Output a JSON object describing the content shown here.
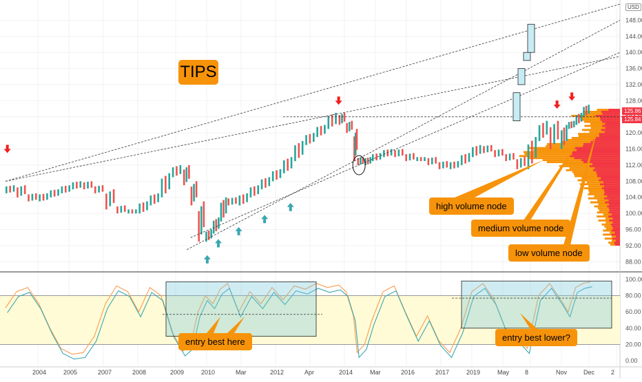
{
  "title": "TIPS",
  "currency": "USD",
  "price_tags": [
    {
      "label": "125.86",
      "color": "#f23645"
    },
    {
      "label": "125.84",
      "color": "#f23645"
    }
  ],
  "callouts": {
    "high_volume": "high volume node",
    "medium_volume": "medium volume node",
    "low_volume": "low volume node",
    "entry_best_here": "entry best here",
    "entry_best_lower": "entry best lower?"
  },
  "colors": {
    "up": "#26a69a",
    "down": "#ef5350",
    "orange": "#f7930a",
    "volume_red": "#f23645",
    "box_blue": "#c8ecf4",
    "band_yellow": "#fffbd6",
    "arrow_up": "#3aa7b0",
    "arrow_down": "#f21f1f"
  },
  "chart_data": [
    {
      "type": "line",
      "name": "price",
      "y_axis_ticks": [
        "148.00",
        "144.00",
        "140.00",
        "136.00",
        "132.00",
        "128.00",
        "124.00",
        "120.00",
        "116.00",
        "112.00",
        "108.00",
        "104.00",
        "100.00",
        "96.00",
        "92.00",
        "88.00"
      ],
      "x_axis_ticks": [
        "2004",
        "2005",
        "2007",
        "2008",
        "2009",
        "2010",
        "Mar",
        "2012",
        "Apr",
        "2014",
        "Mar",
        "2016",
        "2017",
        "2019",
        "May",
        "8",
        "Nov",
        "Dec",
        "2"
      ],
      "ylim": [
        86,
        152
      ],
      "series": [
        {
          "values": [
            [
              2004.0,
              105
            ],
            [
              2004.3,
              106
            ],
            [
              2004.6,
              104
            ],
            [
              2004.9,
              103
            ],
            [
              2005.2,
              104
            ],
            [
              2005.5,
              105
            ],
            [
              2005.8,
              106
            ],
            [
              2006.1,
              107
            ],
            [
              2006.4,
              106
            ],
            [
              2006.7,
              105
            ],
            [
              2007.0,
              101
            ],
            [
              2007.3,
              100
            ],
            [
              2007.6,
              100
            ],
            [
              2007.9,
              102
            ],
            [
              2008.2,
              104
            ],
            [
              2008.5,
              109
            ],
            [
              2008.8,
              111
            ],
            [
              2009.0,
              107
            ],
            [
              2009.2,
              102
            ],
            [
              2009.4,
              93
            ],
            [
              2009.6,
              95
            ],
            [
              2009.8,
              98
            ],
            [
              2010.0,
              103
            ],
            [
              2010.3,
              102
            ],
            [
              2010.6,
              104
            ],
            [
              2010.9,
              106
            ],
            [
              2011.2,
              108
            ],
            [
              2011.5,
              110
            ],
            [
              2011.8,
              113
            ],
            [
              2012.1,
              117
            ],
            [
              2012.4,
              119
            ],
            [
              2012.7,
              121
            ],
            [
              2013.0,
              124
            ],
            [
              2013.2,
              122
            ],
            [
              2013.4,
              120
            ],
            [
              2013.5,
              113
            ],
            [
              2013.7,
              112
            ],
            [
              2013.9,
              113
            ],
            [
              2014.2,
              114
            ],
            [
              2014.5,
              115
            ],
            [
              2014.8,
              114
            ],
            [
              2015.1,
              113
            ],
            [
              2015.4,
              113
            ],
            [
              2015.7,
              112
            ],
            [
              2016.0,
              111
            ],
            [
              2016.3,
              112
            ],
            [
              2016.6,
              114
            ],
            [
              2016.9,
              116
            ],
            [
              2017.2,
              115
            ],
            [
              2017.5,
              114
            ],
            [
              2017.8,
              113
            ],
            [
              2018.1,
              111
            ],
            [
              2018.4,
              118
            ],
            [
              2018.7,
              122
            ],
            [
              2019.0,
              116
            ],
            [
              2019.2,
              121
            ],
            [
              2019.4,
              122
            ],
            [
              2019.6,
              124
            ],
            [
              2019.8,
              126
            ]
          ]
        }
      ]
    },
    {
      "type": "line",
      "name": "stochastic",
      "y_axis_ticks": [
        "100.00",
        "80.00",
        "60.00",
        "40.00",
        "20.00",
        "0.00"
      ],
      "ylim": [
        -5,
        105
      ],
      "bands": [
        20,
        80
      ],
      "series": [
        {
          "values": [
            [
              2004.0,
              65
            ],
            [
              2004.3,
              85
            ],
            [
              2004.6,
              90
            ],
            [
              2004.9,
              70
            ],
            [
              2005.2,
              40
            ],
            [
              2005.5,
              15
            ],
            [
              2005.8,
              8
            ],
            [
              2006.1,
              10
            ],
            [
              2006.4,
              30
            ],
            [
              2006.7,
              70
            ],
            [
              2007.0,
              92
            ],
            [
              2007.3,
              85
            ],
            [
              2007.6,
              60
            ],
            [
              2007.9,
              90
            ],
            [
              2008.2,
              80
            ],
            [
              2008.5,
              35
            ],
            [
              2008.8,
              12
            ],
            [
              2009.0,
              20
            ],
            [
              2009.2,
              60
            ],
            [
              2009.4,
              80
            ],
            [
              2009.6,
              70
            ],
            [
              2009.8,
              88
            ],
            [
              2010.0,
              95
            ],
            [
              2010.3,
              60
            ],
            [
              2010.6,
              85
            ],
            [
              2010.9,
              70
            ],
            [
              2011.2,
              90
            ],
            [
              2011.5,
              75
            ],
            [
              2011.8,
              92
            ],
            [
              2012.1,
              88
            ],
            [
              2012.4,
              95
            ],
            [
              2012.7,
              90
            ],
            [
              2013.0,
              93
            ],
            [
              2013.2,
              85
            ],
            [
              2013.4,
              55
            ],
            [
              2013.5,
              10
            ],
            [
              2013.7,
              20
            ],
            [
              2013.9,
              50
            ],
            [
              2014.2,
              85
            ],
            [
              2014.5,
              92
            ],
            [
              2014.8,
              60
            ],
            [
              2015.1,
              30
            ],
            [
              2015.4,
              55
            ],
            [
              2015.7,
              25
            ],
            [
              2016.0,
              10
            ],
            [
              2016.3,
              40
            ],
            [
              2016.6,
              85
            ],
            [
              2016.9,
              95
            ],
            [
              2017.2,
              75
            ],
            [
              2017.5,
              40
            ],
            [
              2017.8,
              30
            ],
            [
              2018.1,
              15
            ],
            [
              2018.4,
              80
            ],
            [
              2018.7,
              95
            ],
            [
              2019.0,
              75
            ],
            [
              2019.2,
              60
            ],
            [
              2019.4,
              90
            ],
            [
              2019.6,
              95
            ],
            [
              2019.8,
              97
            ]
          ]
        }
      ]
    }
  ]
}
